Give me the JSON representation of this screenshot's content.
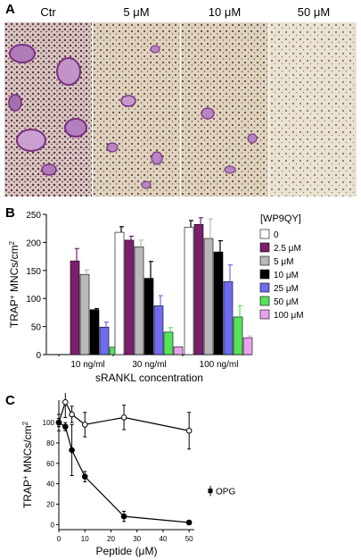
{
  "panel_a": {
    "letter": "A",
    "columns": [
      "Ctr",
      "5 μM",
      "10 μM",
      "50 μM"
    ]
  },
  "chart_data": [
    {
      "panel": "B",
      "type": "bar",
      "ylabel": "TRAP+ MNCs/cm2",
      "ylabel_main": "TRAP",
      "ylabel_sup": "+",
      "ylabel_rest": " MNCs/cm",
      "ylabel_sup2": "2",
      "xlabel": "sRANKL  concentration",
      "ylim": [
        0,
        250
      ],
      "yticks": [
        0,
        50,
        100,
        150,
        200,
        250
      ],
      "categories": [
        "10 ng/ml",
        "30 ng/ml",
        "100 ng/ml"
      ],
      "legend_title": "[WP9QY]",
      "series": [
        {
          "name": "0",
          "color": "#ffffff",
          "values": [
            null,
            218,
            227
          ],
          "errors": [
            null,
            10,
            12
          ]
        },
        {
          "name": "2.5 μM",
          "color": "#7a1f6e",
          "values": [
            167,
            204,
            232
          ],
          "errors": [
            22,
            7,
            12
          ]
        },
        {
          "name": "5 μM",
          "color": "#b8b8b8",
          "values": [
            143,
            192,
            207
          ],
          "errors": [
            8,
            12,
            35
          ]
        },
        {
          "name": "10 μM",
          "color": "#000000",
          "values": [
            80,
            136,
            183
          ],
          "errors": [
            2,
            30,
            20
          ]
        },
        {
          "name": "25 μM",
          "color": "#6f6cf0",
          "values": [
            49,
            87,
            130
          ],
          "errors": [
            9,
            18,
            30
          ]
        },
        {
          "name": "50 μM",
          "color": "#55e35a",
          "values": [
            13,
            40,
            67
          ],
          "errors": [
            6,
            8,
            20
          ]
        },
        {
          "name": "100 μM",
          "color": "#e8a2ec",
          "values": [
            1,
            14,
            30
          ],
          "errors": [
            0,
            0,
            3
          ]
        }
      ]
    },
    {
      "panel": "C",
      "type": "line",
      "ylabel_main": "TRAP",
      "ylabel_sup": "+",
      "ylabel_rest": " MNCs/cm",
      "ylabel_sup2": "2",
      "xlabel": "Peptide (μM)",
      "xlim": [
        0,
        52
      ],
      "ylim": [
        -5,
        122
      ],
      "xticks": [
        0,
        10,
        20,
        30,
        40,
        50
      ],
      "yticks": [
        0,
        20,
        40,
        60,
        80,
        100
      ],
      "series": [
        {
          "marker": "open",
          "x": [
            0,
            2.5,
            5,
            10,
            25,
            50
          ],
          "y": [
            100,
            120,
            108,
            98,
            105,
            92
          ],
          "errors": [
            8,
            15,
            8,
            12,
            12,
            18
          ]
        },
        {
          "marker": "filled",
          "x": [
            0,
            2.5,
            5,
            10,
            25,
            50
          ],
          "y": [
            100,
            96,
            73,
            47,
            8,
            2
          ],
          "errors": [
            4,
            4,
            25,
            5,
            5,
            2
          ]
        }
      ],
      "opg": {
        "label": "OPG",
        "y": 33,
        "error": 5
      }
    }
  ]
}
